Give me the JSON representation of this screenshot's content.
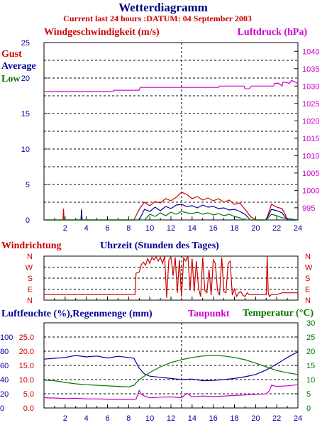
{
  "title": "Wetterdiagramm",
  "subtitle": "Current last 24 hours :DATUM: 04 September 2003",
  "colors": {
    "red": "#cc0000",
    "blue": "#000099",
    "green": "#007700",
    "magenta": "#cc00cc",
    "titleBlue": "#000080"
  },
  "chart_data": [
    {
      "type": "line",
      "panel": "wind",
      "ylabel_left": "Windgeschwindigkeit (m/s)",
      "ylabel_right": "Luftdruck (hPa)",
      "xlabel": "Uhrzeit (Stunden des Tages)",
      "legend": [
        "Gust",
        "Average",
        "Low"
      ],
      "legend_placement": "top-left",
      "x_ticks": [
        "2",
        "4",
        "6",
        "8",
        "10",
        "12",
        "14",
        "16",
        "18",
        "20",
        "22",
        "24"
      ],
      "y_left_ticks": [
        "0",
        "5",
        "10",
        "15",
        "20",
        "25"
      ],
      "y_right_ticks": [
        "995",
        "1000",
        "1005",
        "1010",
        "1015",
        "1020",
        "1025",
        "1030",
        "1035",
        "1040"
      ],
      "xlim": [
        0,
        24
      ],
      "ylim_left": [
        0,
        25
      ],
      "ylim_right": [
        991.5,
        1042.5
      ],
      "grid": true,
      "series": [
        {
          "name": "Luftdruck",
          "color": "magenta",
          "axis": "right",
          "x": [
            0.0,
            6.5,
            6.6,
            9.0,
            9.1,
            16.5,
            16.6,
            18.9,
            19.0,
            19.4,
            19.6,
            20.5,
            21.7,
            21.8,
            22.2,
            22.5,
            22.6,
            23.2,
            23.4,
            24.0
          ],
          "y": [
            1028.4,
            1028.4,
            1028.8,
            1028.8,
            1029.6,
            1029.6,
            1030.0,
            1030.0,
            1029.2,
            1029.2,
            1030.0,
            1030.0,
            1030.0,
            1030.8,
            1030.8,
            1030.0,
            1031.2,
            1030.8,
            1031.6,
            1030.8
          ]
        },
        {
          "name": "Gust",
          "color": "red",
          "axis": "left",
          "x": [
            0.0,
            1.8,
            1.85,
            1.9,
            2.0,
            3.5,
            3.55,
            3.6,
            3.7,
            8.5,
            9.0,
            9.5,
            10.0,
            10.5,
            11.0,
            11.5,
            12.0,
            12.5,
            13.0,
            13.5,
            14.0,
            14.5,
            15.0,
            15.5,
            16.0,
            16.5,
            17.0,
            17.5,
            18.0,
            18.5,
            19.0,
            19.5,
            20.0,
            21.0,
            21.5,
            22.0,
            22.5,
            22.8,
            23.0,
            24.0
          ],
          "y": [
            0,
            0,
            1.6,
            0,
            0,
            0,
            1.6,
            0,
            0,
            0,
            1.5,
            2.5,
            2.0,
            2.6,
            2.4,
            3.0,
            2.7,
            3.2,
            3.9,
            3.6,
            3.0,
            3.3,
            2.8,
            3.1,
            2.7,
            3.0,
            2.5,
            2.8,
            2.2,
            2.4,
            1.5,
            0.5,
            0,
            0,
            2.2,
            1.8,
            1.6,
            0.8,
            0,
            0
          ]
        },
        {
          "name": "Average",
          "color": "blue",
          "axis": "left",
          "x": [
            0.0,
            3.5,
            3.55,
            3.6,
            3.7,
            9.0,
            9.5,
            10.0,
            10.5,
            11.0,
            11.5,
            12.0,
            12.5,
            13.0,
            13.5,
            14.0,
            14.5,
            15.0,
            15.5,
            16.0,
            16.5,
            17.0,
            17.5,
            18.0,
            18.5,
            19.0,
            19.5,
            21.0,
            21.5,
            22.0,
            22.5,
            23.0,
            24.0
          ],
          "y": [
            0,
            0,
            1.4,
            0,
            0,
            0,
            1.5,
            1.2,
            1.8,
            1.3,
            1.9,
            1.6,
            2.1,
            2.2,
            1.9,
            2.0,
            1.7,
            2.1,
            1.8,
            1.9,
            1.6,
            1.7,
            1.4,
            1.5,
            1.2,
            0.8,
            0,
            0,
            1.5,
            1.3,
            1.0,
            0,
            0
          ]
        },
        {
          "name": "Low",
          "color": "green",
          "axis": "left",
          "x": [
            0.0,
            9.5,
            10.0,
            10.5,
            11.0,
            11.5,
            12.0,
            12.5,
            13.0,
            13.5,
            14.0,
            14.5,
            15.0,
            15.5,
            16.0,
            16.5,
            17.0,
            17.5,
            18.0,
            18.5,
            19.0,
            21.0,
            21.5,
            22.0,
            22.5,
            24.0
          ],
          "y": [
            0,
            0,
            0.8,
            0.5,
            1.0,
            0.6,
            1.1,
            0.8,
            1.2,
            1.0,
            0.9,
            1.1,
            0.8,
            1.0,
            0.7,
            0.9,
            0.6,
            0.8,
            0.5,
            0.3,
            0,
            0,
            0.8,
            0.6,
            0.3,
            0
          ]
        }
      ]
    },
    {
      "type": "line",
      "panel": "direction",
      "ylabel": "Windrichtung",
      "y_ticks": [
        "N",
        "E",
        "S",
        "W",
        "N"
      ],
      "ylim": [
        0,
        360
      ],
      "xlim": [
        0,
        24
      ],
      "grid": true,
      "series": [
        {
          "name": "Windrichtung",
          "color": "red",
          "x": [
            0.0,
            8.6,
            8.7,
            9.0,
            9.2,
            9.4,
            9.6,
            9.8,
            10.0,
            10.2,
            10.4,
            10.6,
            10.8,
            11.0,
            11.2,
            11.4,
            11.6,
            11.8,
            12.0,
            12.2,
            12.4,
            12.6,
            12.8,
            13.0,
            13.2,
            13.4,
            13.6,
            13.8,
            14.0,
            14.2,
            14.4,
            14.6,
            14.8,
            15.0,
            15.2,
            15.4,
            15.6,
            15.8,
            16.0,
            16.2,
            16.4,
            16.6,
            16.8,
            17.0,
            17.2,
            17.4,
            17.6,
            17.8,
            18.0,
            18.2,
            18.4,
            18.6,
            18.8,
            19.0,
            19.2,
            19.4,
            21.0,
            21.1,
            21.2,
            21.3,
            21.5,
            22.0,
            22.5,
            24.0
          ],
          "y": [
            45,
            45,
            220,
            230,
            290,
            310,
            285,
            340,
            300,
            350,
            330,
            355,
            320,
            350,
            300,
            360,
            20,
            330,
            355,
            200,
            350,
            60,
            330,
            30,
            345,
            320,
            360,
            80,
            340,
            70,
            320,
            100,
            30,
            350,
            80,
            60,
            250,
            40,
            330,
            300,
            80,
            40,
            350,
            70,
            60,
            300,
            320,
            40,
            90,
            30,
            60,
            70,
            40,
            30,
            60,
            45,
            45,
            360,
            60,
            30,
            45,
            45,
            60,
            60
          ]
        }
      ]
    },
    {
      "type": "line",
      "panel": "humidity",
      "ylabel_left": "Luftfeuchte (%),Regenmenge (mm)",
      "dewpoint_label": "Taupunkt",
      "temperature_label": "Temperatur (°C)",
      "y_left_outer_ticks": [
        "0",
        "20",
        "40",
        "60",
        "80",
        "100"
      ],
      "y_left_inner_ticks": [
        "0.0",
        "5.0",
        "10.0",
        "15.0",
        "20.0",
        "25.0"
      ],
      "y_right_ticks": [
        "0",
        "5",
        "10",
        "15",
        "20",
        "25",
        "30"
      ],
      "x_ticks": [
        "2",
        "4",
        "6",
        "8",
        "10",
        "12",
        "14",
        "16",
        "18",
        "20",
        "22",
        "24"
      ],
      "xlim": [
        0,
        24
      ],
      "ylim_right": [
        0,
        30
      ],
      "grid": true,
      "series": [
        {
          "name": "Luftfeuchte",
          "color": "blue",
          "axis": "right",
          "x": [
            0,
            1,
            2,
            3,
            4,
            5,
            6,
            7,
            8,
            8.5,
            9,
            9.5,
            10,
            11,
            12,
            13,
            14,
            15,
            16,
            17,
            18,
            19,
            20,
            21,
            22,
            23,
            24
          ],
          "y": [
            17.2,
            17.5,
            17.8,
            18.5,
            18.0,
            18.3,
            17.6,
            18.2,
            17.8,
            17.5,
            14.0,
            12.0,
            11.2,
            10.8,
            10.4,
            10.0,
            10.2,
            9.6,
            9.7,
            10.0,
            10.4,
            11.0,
            11.8,
            13.4,
            15.5,
            17.8,
            19.8
          ]
        },
        {
          "name": "Temperatur",
          "color": "green",
          "axis": "right",
          "x": [
            0,
            1,
            2,
            3,
            4,
            5,
            6,
            7,
            8,
            8.5,
            9,
            10,
            11,
            12,
            13,
            14,
            15,
            16,
            17,
            18,
            19,
            20,
            21,
            22,
            23,
            24
          ],
          "y": [
            9.8,
            9.6,
            9.0,
            8.5,
            8.2,
            8.0,
            7.8,
            7.6,
            7.4,
            8.0,
            10.0,
            12.5,
            14.5,
            16.0,
            17.0,
            17.8,
            18.3,
            18.6,
            18.3,
            17.8,
            17.0,
            15.8,
            14.5,
            13.2,
            12.4,
            11.8
          ]
        },
        {
          "name": "Taupunkt",
          "color": "magenta",
          "axis": "right",
          "x": [
            0,
            1,
            2,
            3,
            4,
            5,
            6,
            7,
            8,
            8.7,
            9,
            9.2,
            9.5,
            10,
            11,
            12,
            13,
            13.5,
            14,
            15,
            16,
            17,
            18,
            19,
            20,
            21,
            21.3,
            21.5,
            22,
            23,
            24
          ],
          "y": [
            3.6,
            3.5,
            3.3,
            3.4,
            3.2,
            3.2,
            3.1,
            3.0,
            3.0,
            3.1,
            6.2,
            4.8,
            4.2,
            3.6,
            3.8,
            3.9,
            3.6,
            5.2,
            3.9,
            4.2,
            4.0,
            4.2,
            4.4,
            4.6,
            4.8,
            5.0,
            6.0,
            8.0,
            7.6,
            7.8,
            8.2
          ]
        }
      ]
    }
  ]
}
